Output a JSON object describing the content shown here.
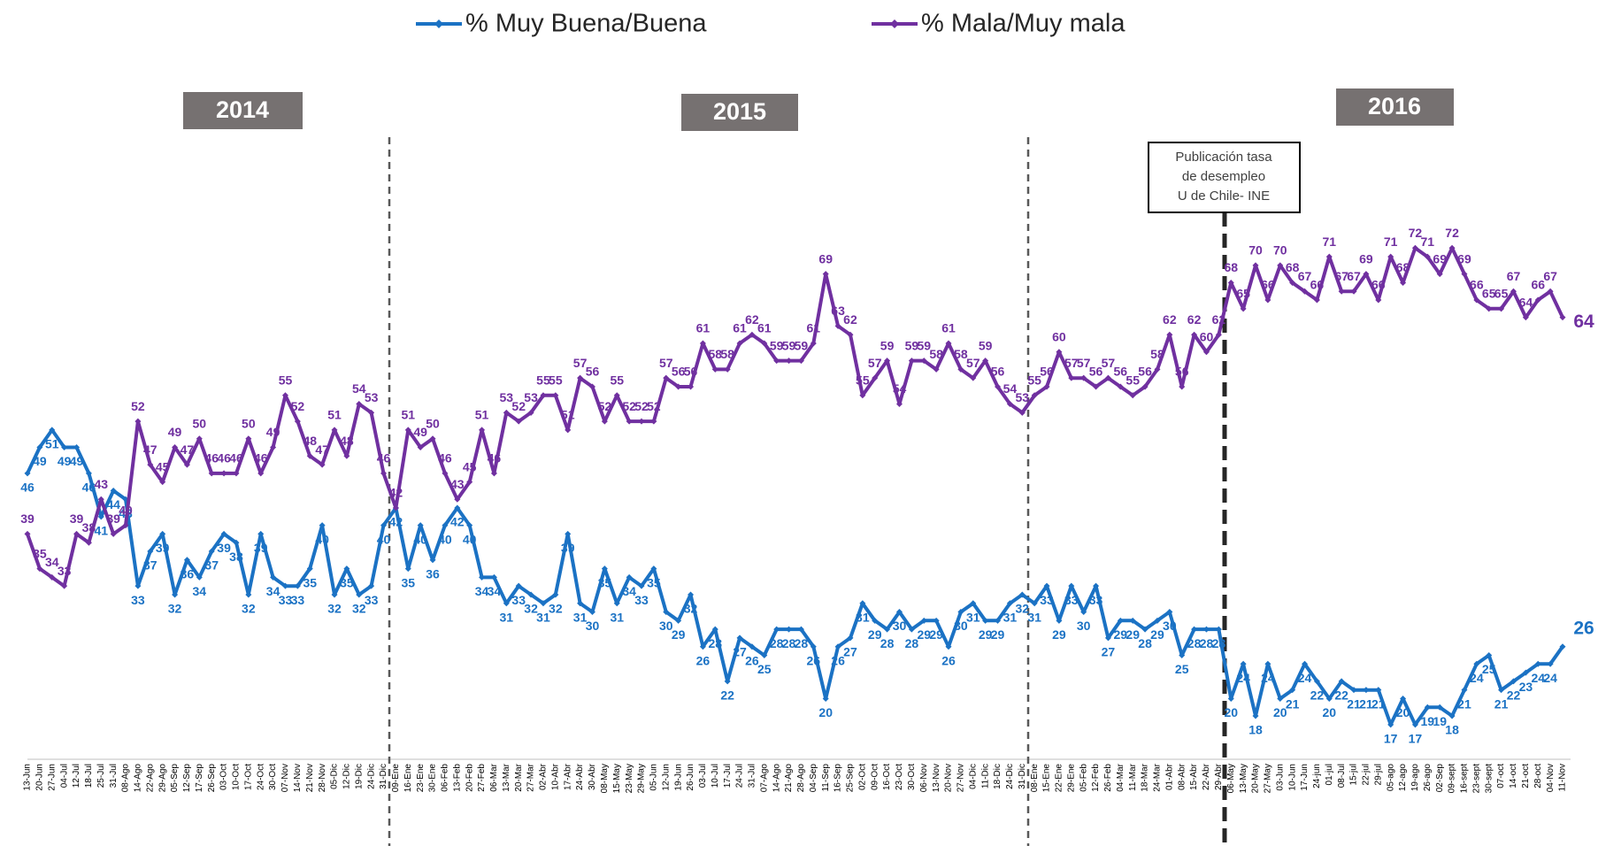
{
  "chart_data": {
    "type": "line",
    "categories": [
      "13-Jun",
      "20-Jun",
      "27-Jun",
      "04-Jul",
      "12-Jul",
      "18-Jul",
      "25-Jul",
      "31-Jul",
      "08-Ago",
      "14-Ago",
      "22-Ago",
      "29-Ago",
      "05-Sep",
      "12-Sep",
      "17-Sep",
      "26-Sep",
      "03-Oct",
      "10-Oct",
      "17-Oct",
      "24-Oct",
      "30-Oct",
      "07-Nov",
      "14-Nov",
      "21-Nov",
      "28-Nov",
      "05-Dic",
      "12-Dic",
      "19-Dic",
      "24-Dic",
      "31-Dic",
      "09-Ene",
      "16-Ene",
      "23-Ene",
      "30-Ene",
      "06-Feb",
      "13-Feb",
      "20-Feb",
      "27-Feb",
      "06-Mar",
      "13-Mar",
      "20-Mar",
      "27-Mar",
      "02-Abr",
      "10-Abr",
      "17-Abr",
      "24-Abr",
      "30-Abr",
      "08-May",
      "15-May",
      "23-May",
      "29-May",
      "05-Jun",
      "12-Jun",
      "19-Jun",
      "26-Jun",
      "03-Jul",
      "10-Jul",
      "17-Jul",
      "24-Jul",
      "31-Jul",
      "07-Ago",
      "14-Ago",
      "21-Ago",
      "28-Ago",
      "04-Sep",
      "11-Sep",
      "16-Sep",
      "25-Sep",
      "02-Oct",
      "09-Oct",
      "16-Oct",
      "23-Oct",
      "30-Oct",
      "06-Nov",
      "13-Nov",
      "20-Nov",
      "27-Nov",
      "04-Dic",
      "11-Dic",
      "18-Dic",
      "24-Dic",
      "31-Dic",
      "08-Ene",
      "15-Ene",
      "22-Ene",
      "29-Ene",
      "05-Feb",
      "12-Feb",
      "26-Feb",
      "04-Mar",
      "11-Mar",
      "18-Mar",
      "24-Mar",
      "01-Abr",
      "08-Abr",
      "15-Abr",
      "22-Abr",
      "29-Abr",
      "06-May",
      "13-May",
      "20-May",
      "27-May",
      "03-Jun",
      "10-Jun",
      "17-Jun",
      "24-jun",
      "01-jul",
      "08-Jul",
      "15-jul",
      "22-jul",
      "29-jul",
      "05-ago",
      "12-ago",
      "19-ago",
      "26-ago",
      "02-Sep",
      "09-sept",
      "16-sept",
      "23-sept",
      "30-sept",
      "07-oct",
      "14-oct",
      "21-oct",
      "28-oct",
      "04-Nov",
      "11-Nov"
    ],
    "series": [
      {
        "name": "% Muy Buena/Buena",
        "color": "#1b72c4",
        "values": [
          46,
          49,
          51,
          49,
          49,
          46,
          41,
          44,
          43,
          33,
          37,
          39,
          32,
          36,
          34,
          37,
          39,
          38,
          32,
          39,
          34,
          33,
          33,
          35,
          40,
          32,
          35,
          32,
          33,
          40,
          42,
          35,
          40,
          36,
          40,
          42,
          40,
          34,
          34,
          31,
          33,
          32,
          31,
          32,
          39,
          31,
          30,
          35,
          31,
          34,
          33,
          35,
          30,
          29,
          32,
          26,
          28,
          22,
          27,
          26,
          25,
          28,
          28,
          28,
          26,
          20,
          26,
          27,
          31,
          29,
          28,
          30,
          28,
          29,
          29,
          26,
          30,
          31,
          29,
          29,
          31,
          32,
          31,
          33,
          29,
          33,
          30,
          33,
          27,
          29,
          29,
          28,
          29,
          30,
          25,
          28,
          28,
          28,
          20,
          24,
          18,
          24,
          20,
          21,
          24,
          22,
          20,
          22,
          21,
          21,
          21,
          17,
          20,
          17,
          19,
          19,
          18,
          21,
          24,
          25,
          21,
          22,
          23,
          24,
          24,
          26
        ]
      },
      {
        "name": "% Mala/Muy mala",
        "color": "#7030a0",
        "values": [
          39,
          35,
          34,
          33,
          39,
          38,
          43,
          39,
          40,
          52,
          47,
          45,
          49,
          47,
          50,
          46,
          46,
          46,
          50,
          46,
          49,
          55,
          52,
          48,
          47,
          51,
          48,
          54,
          53,
          46,
          42,
          51,
          49,
          50,
          46,
          43,
          45,
          51,
          46,
          53,
          52,
          53,
          55,
          55,
          51,
          57,
          56,
          52,
          55,
          52,
          52,
          52,
          57,
          56,
          56,
          61,
          58,
          58,
          61,
          62,
          61,
          59,
          59,
          59,
          61,
          69,
          63,
          62,
          55,
          57,
          59,
          54,
          59,
          59,
          58,
          61,
          58,
          57,
          59,
          56,
          54,
          53,
          55,
          56,
          60,
          57,
          57,
          56,
          57,
          56,
          55,
          56,
          58,
          62,
          56,
          62,
          60,
          62,
          68,
          65,
          70,
          66,
          70,
          68,
          67,
          66,
          71,
          67,
          67,
          69,
          66,
          71,
          68,
          72,
          71,
          69,
          72,
          69,
          66,
          65,
          65,
          67,
          64,
          66,
          67,
          64
        ]
      }
    ],
    "ylim": [
      13,
      85
    ],
    "year_labels": [
      "2014",
      "2015",
      "2016"
    ],
    "annotation": [
      "Publicación tasa",
      "de desempleo",
      "U de Chile- INE"
    ]
  }
}
